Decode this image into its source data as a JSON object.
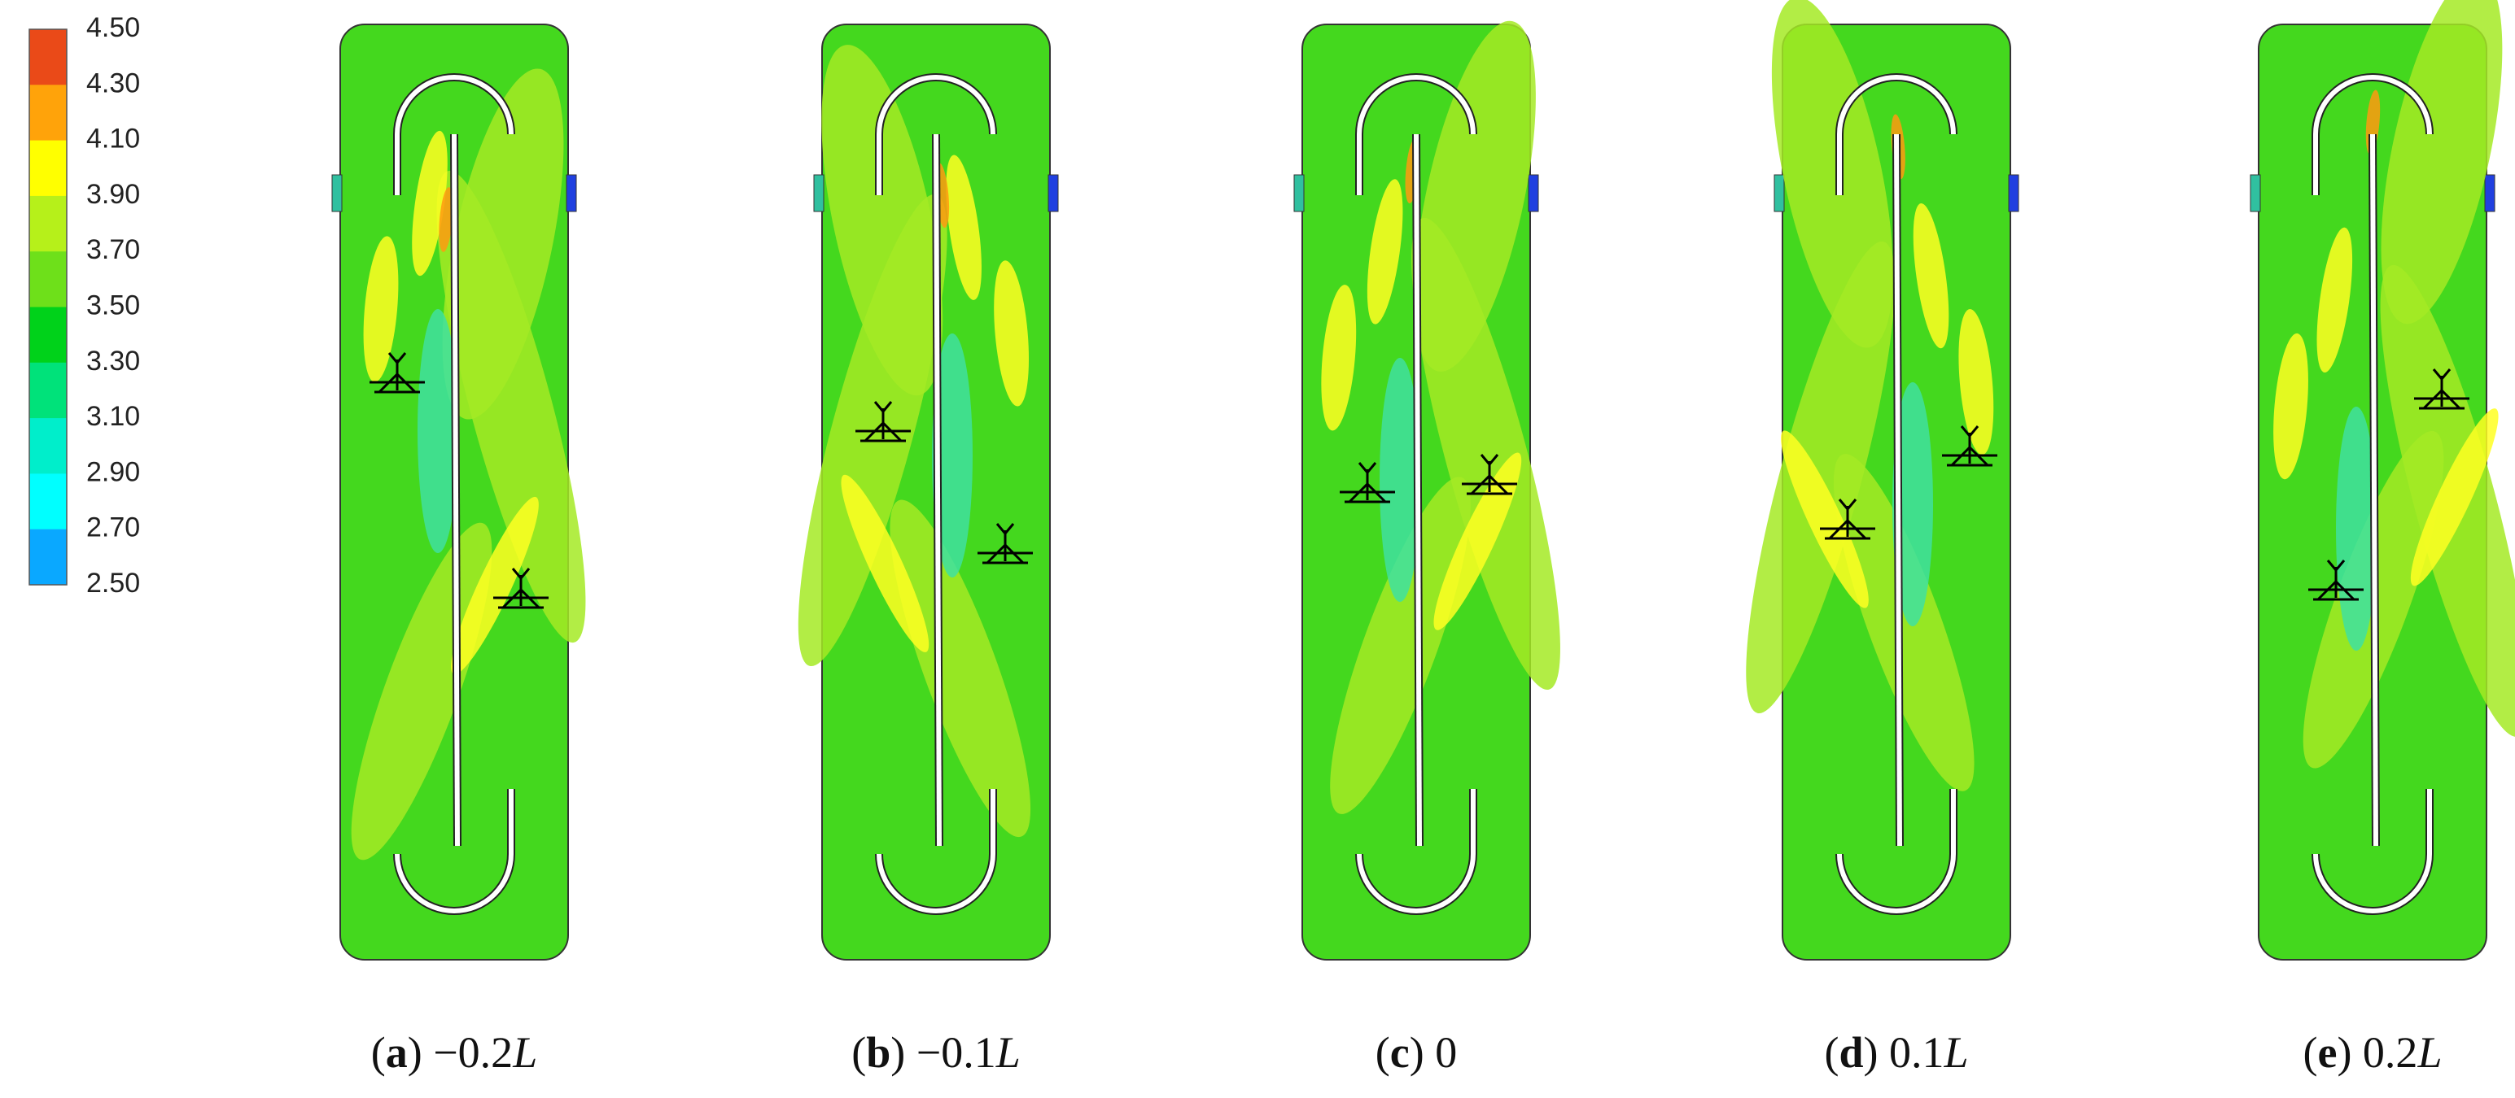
{
  "legend": {
    "levels": [
      "4.50",
      "4.30",
      "4.10",
      "3.90",
      "3.70",
      "3.50",
      "3.30",
      "3.10",
      "2.90",
      "2.70",
      "2.50"
    ],
    "colors": [
      "#ea4a18",
      "#ffa30a",
      "#ffff00",
      "#b6f01a",
      "#6ee01a",
      "#00d21a",
      "#00e27a",
      "#00eecb",
      "#00ffff",
      "#0aa8ff",
      "#0a40f5"
    ]
  },
  "panels": [
    {
      "caption": [
        {
          "text": "("
        },
        {
          "text": "a",
          "bold": true
        },
        {
          "text": ") −0.2"
        },
        {
          "text": "L",
          "italic": true
        }
      ]
    },
    {
      "caption": [
        {
          "text": "("
        },
        {
          "text": "b",
          "bold": true
        },
        {
          "text": ") −0.1"
        },
        {
          "text": "L",
          "italic": true
        }
      ]
    },
    {
      "caption": [
        {
          "text": "("
        },
        {
          "text": "c",
          "bold": true
        },
        {
          "text": ") 0"
        }
      ]
    },
    {
      "caption": [
        {
          "text": "("
        },
        {
          "text": "d",
          "bold": true
        },
        {
          "text": ") 0.1"
        },
        {
          "text": "L",
          "italic": true
        }
      ]
    },
    {
      "caption": [
        {
          "text": "("
        },
        {
          "text": "e",
          "bold": true
        },
        {
          "text": ") 0.2"
        },
        {
          "text": "L",
          "italic": true
        }
      ]
    }
  ]
}
